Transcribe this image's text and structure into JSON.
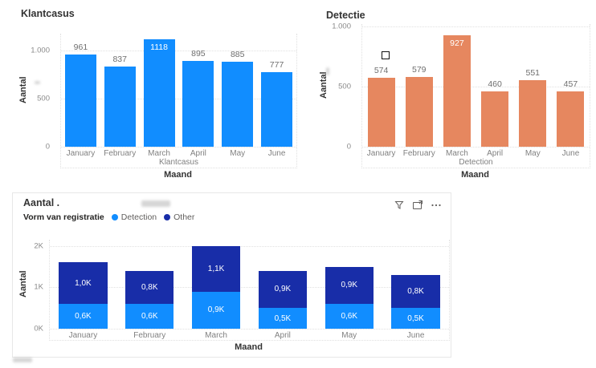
{
  "chart_data": [
    {
      "id": "klantcasus",
      "type": "bar",
      "title": "Klantcasus",
      "categories": [
        "January",
        "February",
        "March",
        "April",
        "May",
        "June"
      ],
      "values": [
        961,
        837,
        1118,
        895,
        885,
        777
      ],
      "value_labels": [
        "961",
        "837",
        "1118",
        "895",
        "885",
        "777"
      ],
      "label_inside": [
        false,
        false,
        true,
        false,
        false,
        false
      ],
      "series_label": "Klantcasus",
      "xlabel": "Maand",
      "ylabel": "Aantal",
      "yticks": [
        {
          "value": 0,
          "label": "0"
        },
        {
          "value": 500,
          "label": "500"
        },
        {
          "value": 1000,
          "label": "1.000"
        }
      ],
      "ylim": [
        0,
        1175
      ],
      "bar_color": "#118DFF",
      "grid": "dotted",
      "legend_position": "none"
    },
    {
      "id": "detectie",
      "type": "bar",
      "title": "Detectie",
      "categories": [
        "January",
        "February",
        "March",
        "April",
        "May",
        "June"
      ],
      "values": [
        574,
        579,
        927,
        460,
        551,
        457
      ],
      "value_labels": [
        "574",
        "579",
        "927",
        "460",
        "551",
        "457"
      ],
      "label_inside": [
        false,
        false,
        true,
        false,
        false,
        false
      ],
      "series_label": "Detection",
      "xlabel": "Maand",
      "ylabel": "Aantal",
      "yticks": [
        {
          "value": 0,
          "label": "0"
        },
        {
          "value": 500,
          "label": "500"
        },
        {
          "value": 1000,
          "label": "1.000"
        }
      ],
      "ylim": [
        0,
        1020
      ],
      "bar_color": "#E6875F",
      "grid": "dotted",
      "legend_position": "none"
    },
    {
      "id": "vorm-van-registratie",
      "type": "stacked-bar",
      "title": "Aantal .",
      "legend_title": "Vorm van registratie",
      "categories": [
        "January",
        "February",
        "March",
        "April",
        "May",
        "June"
      ],
      "series": [
        {
          "name": "Detection",
          "color": "#118DFF",
          "values": [
            600,
            600,
            900,
            500,
            600,
            500
          ],
          "labels": [
            "0,6K",
            "0,6K",
            "0,9K",
            "0,5K",
            "0,6K",
            "0,5K"
          ]
        },
        {
          "name": "Other",
          "color": "#182DA8",
          "values": [
            1000,
            800,
            1100,
            900,
            900,
            800
          ],
          "labels": [
            "1,0K",
            "0,8K",
            "1,1K",
            "0,9K",
            "0,9K",
            "0,8K"
          ]
        }
      ],
      "xlabel": "Maand",
      "ylabel": "Aantal",
      "yticks": [
        {
          "value": 0,
          "label": "0K"
        },
        {
          "value": 1000,
          "label": "1K"
        },
        {
          "value": 2000,
          "label": "2K"
        }
      ],
      "ylim": [
        0,
        2150
      ],
      "grid": "dotted",
      "legend_position": "top",
      "toolbar_icons": [
        "filter",
        "focus-mode",
        "more-options"
      ]
    }
  ]
}
